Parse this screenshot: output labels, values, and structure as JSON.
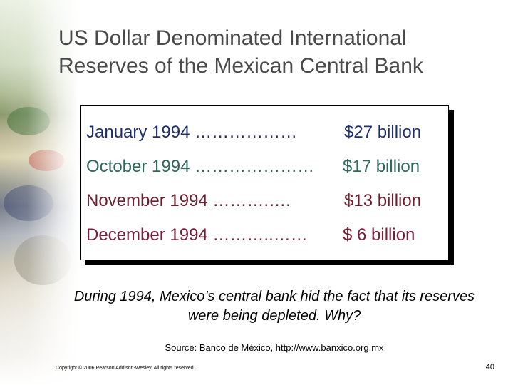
{
  "title": "US Dollar Denominated International Reserves of the Mexican Central Bank",
  "reserves": [
    {
      "date_text": "January 1994 ………………",
      "value": "$27 billion"
    },
    {
      "date_text": "October 1994 …………………",
      "value": "$17 billion"
    },
    {
      "date_text": "November 1994 ……….….",
      "value": "$13 billion"
    },
    {
      "date_text": "December 1994 ………..……",
      "value": "$ 6 billion"
    }
  ],
  "question": "During 1994, Mexico’s central bank hid the fact that its reserves were being depleted.  Why?",
  "source": "Source: Banco de México, http://www.banxico.org.mx",
  "copyright": "Copyright © 2006 Pearson Addison-Wesley. All rights reserved.",
  "page_number": "40",
  "colors": {
    "january": "#1f2f6e",
    "october": "#2e6a5a",
    "november": "#6e1d2e",
    "december": "#7a1e3a",
    "title": "#4a4a4a"
  }
}
